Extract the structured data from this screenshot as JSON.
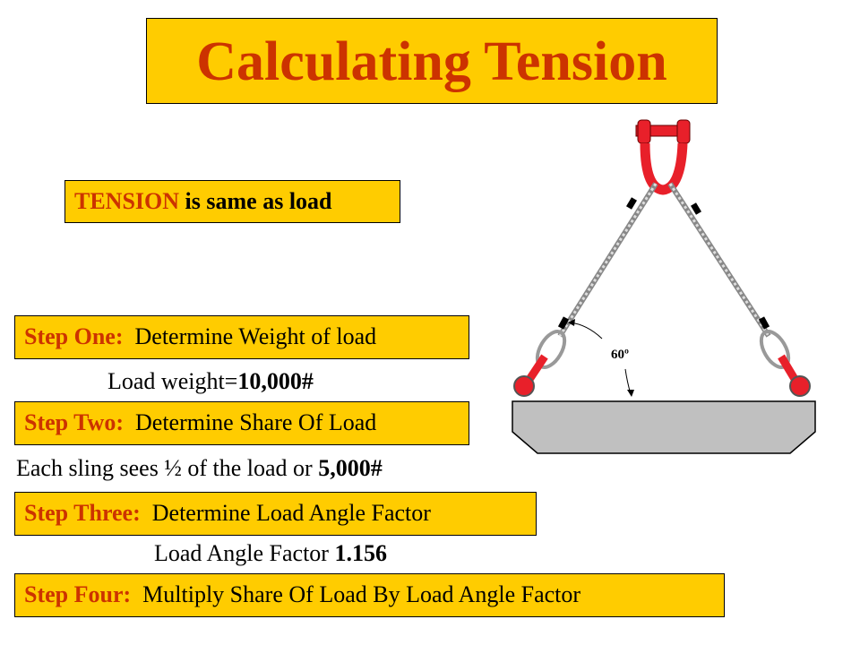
{
  "title": "Calculating Tension",
  "tension_note": {
    "highlight": "TENSION",
    "rest": " is same as load"
  },
  "steps": [
    {
      "label": "Step One:",
      "text": "Determine Weight of load"
    },
    {
      "label": "Step Two:",
      "text": "Determine Share Of Load"
    },
    {
      "label": "Step Three:",
      "text": "Determine Load Angle Factor"
    },
    {
      "label": "Step Four:",
      "text": "Multiply Share Of Load By Load Angle Factor"
    }
  ],
  "results": {
    "load_weight_prefix": "Load weight=",
    "load_weight_value": "10,000#",
    "share_prefix": "Each sling sees ½ of the load or ",
    "share_value": "5,000#",
    "angle_factor_prefix": "Load Angle Factor ",
    "angle_factor_value": "1.156"
  },
  "diagram": {
    "angle_label": "60º"
  },
  "colors": {
    "box": "#FFCC00",
    "accent": "#CC3300",
    "hardware": "#E8202A",
    "load": "#C0C0C0"
  }
}
